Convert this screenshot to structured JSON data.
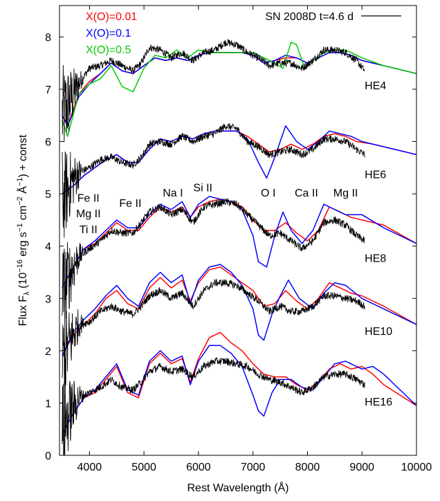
{
  "chart_data": {
    "type": "line",
    "title": "",
    "xlabel": "Rest Wavelength (Å)",
    "ylabel_parts": {
      "prefix": "Flux  F",
      "sub": "λ",
      "mid1": "  (10",
      "exp1": "−16",
      "mid2": " erg s",
      "exp2": "−1",
      "mid3": " cm",
      "exp3": "−2",
      "mid4": " Å",
      "exp4": "−1",
      "suffix": ") + const"
    },
    "xlim": [
      3450,
      10000
    ],
    "ylim": [
      0,
      8.6
    ],
    "x_ticks": [
      4000,
      5000,
      6000,
      7000,
      8000,
      9000,
      10000
    ],
    "y_ticks": [
      0,
      1,
      2,
      3,
      4,
      5,
      6,
      7,
      8
    ],
    "legend": {
      "placement": "top",
      "entries": [
        {
          "label": "X(O)=0.01",
          "color": "#ff0000"
        },
        {
          "label": "X(O)=0.1",
          "color": "#0000ff"
        },
        {
          "label": "X(O)=0.5",
          "color": "#00cc00"
        },
        {
          "label": "SN 2008D t=4.6 d",
          "color": "#000000"
        }
      ]
    },
    "model_labels": [
      {
        "text": "HE4",
        "x": 9050,
        "y": 7.0
      },
      {
        "text": "HE6",
        "x": 9050,
        "y": 5.3
      },
      {
        "text": "HE8",
        "x": 9050,
        "y": 3.7
      },
      {
        "text": "HE10",
        "x": 9050,
        "y": 2.3
      },
      {
        "text": "HE16",
        "x": 9050,
        "y": 0.95
      }
    ],
    "ion_labels": [
      {
        "text": "Fe II",
        "x": 3980,
        "y": 4.85
      },
      {
        "text": "Mg II",
        "x": 3980,
        "y": 4.55
      },
      {
        "text": "Ti II",
        "x": 3980,
        "y": 4.25
      },
      {
        "text": "Fe II",
        "x": 4750,
        "y": 4.75
      },
      {
        "text": "Na I",
        "x": 5530,
        "y": 4.95
      },
      {
        "text": "Si II",
        "x": 6080,
        "y": 5.05
      },
      {
        "text": "O I",
        "x": 7280,
        "y": 4.95
      },
      {
        "text": "Ca II",
        "x": 7980,
        "y": 4.95
      },
      {
        "text": "Mg II",
        "x": 8700,
        "y": 4.95
      }
    ],
    "series": [
      {
        "group": "HE4",
        "color": "#000000",
        "noisy": true,
        "x": [
          3500,
          3650,
          3800,
          4000,
          4200,
          4400,
          4600,
          4800,
          4950,
          5100,
          5300,
          5500,
          5700,
          5900,
          6100,
          6300,
          6500,
          6700,
          6900,
          7100,
          7300,
          7500,
          7700,
          7900,
          8100,
          8300,
          8500,
          8700,
          8900,
          9050
        ],
        "y": [
          6.5,
          6.8,
          7.1,
          7.4,
          7.45,
          7.55,
          7.45,
          7.35,
          7.5,
          7.8,
          7.75,
          7.6,
          7.7,
          7.55,
          7.7,
          7.75,
          7.9,
          7.85,
          7.7,
          7.6,
          7.45,
          7.5,
          7.5,
          7.4,
          7.55,
          7.75,
          7.75,
          7.7,
          7.55,
          7.35
        ]
      },
      {
        "group": "HE4",
        "color": "#ff0000",
        "x": [
          3500,
          3600,
          3700,
          3800,
          4000,
          4200,
          4400,
          4600,
          4800,
          5000,
          5200,
          5400,
          5600,
          5800,
          6000,
          6200,
          6500,
          6800,
          7000,
          7200,
          7400,
          7600,
          7800,
          8000,
          8200,
          8400,
          8600,
          8800,
          9000,
          9400,
          10000
        ],
        "y": [
          6.5,
          6.3,
          6.6,
          6.9,
          7.15,
          7.3,
          7.5,
          7.35,
          7.3,
          7.45,
          7.6,
          7.55,
          7.6,
          7.55,
          7.65,
          7.7,
          7.7,
          7.7,
          7.65,
          7.5,
          7.55,
          7.6,
          7.6,
          7.5,
          7.6,
          7.7,
          7.7,
          7.65,
          7.55,
          7.45,
          7.3
        ]
      },
      {
        "group": "HE4",
        "color": "#0000ff",
        "x": [
          3500,
          3600,
          3700,
          3800,
          4000,
          4200,
          4400,
          4600,
          4800,
          5000,
          5200,
          5400,
          5600,
          5800,
          6000,
          6200,
          6500,
          6800,
          7000,
          7200,
          7400,
          7600,
          7800,
          8000,
          8200,
          8400,
          8600,
          8800,
          9000,
          9400,
          10000
        ],
        "y": [
          6.5,
          6.3,
          6.55,
          6.85,
          7.1,
          7.3,
          7.5,
          7.35,
          7.3,
          7.45,
          7.6,
          7.55,
          7.6,
          7.55,
          7.65,
          7.7,
          7.7,
          7.7,
          7.65,
          7.5,
          7.55,
          7.65,
          7.6,
          7.5,
          7.6,
          7.7,
          7.7,
          7.65,
          7.55,
          7.45,
          7.3
        ]
      },
      {
        "group": "HE4",
        "color": "#00cc00",
        "x": [
          3500,
          3600,
          3700,
          3800,
          4000,
          4200,
          4400,
          4600,
          4800,
          5000,
          5200,
          5400,
          5600,
          5800,
          6000,
          6200,
          6500,
          6800,
          7000,
          7200,
          7400,
          7550,
          7700,
          7800,
          7950,
          8100,
          8300,
          8500,
          8700,
          9000,
          9400,
          10000
        ],
        "y": [
          6.4,
          6.1,
          6.5,
          6.9,
          7.1,
          7.2,
          7.45,
          7.05,
          6.95,
          7.4,
          7.65,
          7.6,
          7.75,
          7.6,
          7.75,
          7.7,
          7.7,
          7.7,
          7.7,
          7.6,
          7.5,
          7.4,
          7.9,
          7.85,
          7.4,
          7.55,
          7.7,
          7.75,
          7.75,
          7.6,
          7.45,
          7.3
        ]
      },
      {
        "group": "HE6",
        "color": "#000000",
        "noisy": true,
        "x": [
          3500,
          3650,
          3800,
          4000,
          4200,
          4400,
          4600,
          4800,
          4950,
          5100,
          5300,
          5500,
          5700,
          5900,
          6100,
          6300,
          6500,
          6700,
          6900,
          7100,
          7300,
          7500,
          7700,
          7900,
          8100,
          8300,
          8500,
          8700,
          8900,
          9050
        ],
        "y": [
          4.9,
          5.2,
          5.4,
          5.5,
          5.65,
          5.7,
          5.6,
          5.55,
          5.7,
          5.95,
          6.0,
          5.95,
          6.1,
          6.0,
          6.1,
          6.15,
          6.3,
          6.25,
          6.0,
          5.9,
          5.75,
          5.8,
          5.85,
          5.75,
          5.85,
          6.05,
          6.05,
          6.0,
          5.85,
          5.75
        ]
      },
      {
        "group": "HE6",
        "color": "#ff0000",
        "x": [
          3500,
          3700,
          3900,
          4100,
          4300,
          4500,
          4700,
          4900,
          5100,
          5300,
          5500,
          5700,
          5900,
          6100,
          6300,
          6500,
          6700,
          6900,
          7100,
          7300,
          7500,
          7700,
          7900,
          8100,
          8300,
          8500,
          8700,
          8900,
          9200,
          9600,
          10000
        ],
        "y": [
          5.0,
          5.15,
          5.35,
          5.5,
          5.65,
          5.75,
          5.6,
          5.6,
          5.85,
          6.05,
          6.0,
          6.1,
          6.05,
          6.15,
          6.2,
          6.2,
          6.2,
          6.1,
          5.95,
          5.8,
          5.85,
          5.95,
          5.85,
          5.95,
          6.1,
          6.15,
          6.1,
          6.0,
          5.95,
          5.85,
          5.75
        ]
      },
      {
        "group": "HE6",
        "color": "#0000ff",
        "x": [
          3500,
          3700,
          3900,
          4100,
          4300,
          4500,
          4700,
          4900,
          5100,
          5300,
          5500,
          5700,
          5900,
          6100,
          6300,
          6500,
          6700,
          6900,
          7100,
          7250,
          7400,
          7600,
          7800,
          8000,
          8200,
          8400,
          8600,
          8800,
          9000,
          9400,
          10000
        ],
        "y": [
          5.0,
          5.15,
          5.35,
          5.5,
          5.65,
          5.75,
          5.6,
          5.6,
          5.85,
          6.05,
          6.0,
          6.1,
          6.05,
          6.15,
          6.2,
          6.2,
          6.2,
          6.05,
          5.6,
          5.3,
          5.7,
          6.3,
          6.0,
          5.85,
          6.0,
          6.2,
          6.15,
          6.1,
          6.0,
          5.9,
          5.75
        ]
      },
      {
        "group": "HE8",
        "color": "#000000",
        "noisy": true,
        "x": [
          3500,
          3650,
          3800,
          4000,
          4200,
          4400,
          4600,
          4800,
          4950,
          5100,
          5300,
          5500,
          5700,
          5900,
          6100,
          6300,
          6500,
          6700,
          6900,
          7100,
          7300,
          7500,
          7700,
          7900,
          8100,
          8300,
          8500,
          8700,
          8900,
          9050
        ],
        "y": [
          3.1,
          3.5,
          3.8,
          3.95,
          4.1,
          4.3,
          4.25,
          4.25,
          4.45,
          4.65,
          4.75,
          4.6,
          4.7,
          4.45,
          4.75,
          4.8,
          4.85,
          4.8,
          4.6,
          4.4,
          4.2,
          4.25,
          4.1,
          3.95,
          4.1,
          4.45,
          4.5,
          4.4,
          4.2,
          4.1
        ]
      },
      {
        "group": "HE8",
        "color": "#ff0000",
        "x": [
          3500,
          3700,
          3900,
          4100,
          4300,
          4500,
          4700,
          4900,
          5100,
          5300,
          5500,
          5700,
          5850,
          6000,
          6200,
          6400,
          6600,
          6800,
          7000,
          7200,
          7400,
          7600,
          7800,
          8000,
          8200,
          8400,
          8600,
          8800,
          9000,
          9400,
          10000
        ],
        "y": [
          3.2,
          3.6,
          3.95,
          4.05,
          4.25,
          4.45,
          4.3,
          4.3,
          4.55,
          4.75,
          4.65,
          4.75,
          4.55,
          4.75,
          4.85,
          4.9,
          4.85,
          4.75,
          4.5,
          4.3,
          4.3,
          4.45,
          4.25,
          4.1,
          4.3,
          4.75,
          4.65,
          4.55,
          4.5,
          4.4,
          4.05
        ]
      },
      {
        "group": "HE8",
        "color": "#0000ff",
        "x": [
          3500,
          3700,
          3900,
          4100,
          4300,
          4500,
          4700,
          4900,
          5100,
          5300,
          5500,
          5700,
          5850,
          6000,
          6200,
          6400,
          6600,
          6800,
          7000,
          7100,
          7250,
          7400,
          7550,
          7700,
          7900,
          8100,
          8300,
          8500,
          8700,
          9000,
          9400,
          10000
        ],
        "y": [
          3.2,
          3.6,
          3.95,
          4.1,
          4.3,
          4.5,
          4.35,
          4.35,
          4.6,
          4.8,
          4.7,
          4.85,
          4.55,
          4.8,
          4.95,
          4.9,
          4.85,
          4.7,
          4.2,
          3.7,
          3.6,
          4.2,
          4.65,
          4.3,
          4.05,
          4.3,
          4.8,
          4.7,
          4.6,
          4.6,
          4.35,
          4.05
        ]
      },
      {
        "group": "HE10",
        "color": "#000000",
        "noisy": true,
        "x": [
          3500,
          3650,
          3800,
          4000,
          4200,
          4400,
          4600,
          4800,
          4950,
          5100,
          5300,
          5500,
          5700,
          5900,
          6100,
          6300,
          6500,
          6700,
          6900,
          7100,
          7300,
          7500,
          7700,
          7900,
          8100,
          8300,
          8500,
          8700,
          8900,
          9050
        ],
        "y": [
          1.8,
          2.2,
          2.5,
          2.55,
          2.75,
          2.85,
          2.75,
          2.7,
          2.85,
          3.05,
          3.15,
          3.0,
          3.1,
          2.85,
          3.15,
          3.3,
          3.3,
          3.25,
          3.1,
          2.95,
          2.75,
          2.85,
          2.75,
          2.75,
          2.85,
          3.05,
          3.05,
          3.0,
          2.95,
          2.85
        ]
      },
      {
        "group": "HE10",
        "color": "#ff0000",
        "x": [
          3500,
          3700,
          3900,
          4100,
          4300,
          4500,
          4700,
          4900,
          5100,
          5300,
          5500,
          5700,
          5850,
          6000,
          6200,
          6400,
          6600,
          6800,
          7000,
          7200,
          7400,
          7600,
          7800,
          8000,
          8200,
          8400,
          8600,
          8800,
          9000,
          9400,
          10000
        ],
        "y": [
          1.9,
          2.3,
          2.5,
          2.7,
          3.0,
          3.15,
          2.9,
          2.8,
          3.2,
          3.4,
          3.2,
          3.35,
          2.95,
          3.3,
          3.55,
          3.6,
          3.45,
          3.3,
          3.15,
          2.85,
          2.9,
          3.15,
          2.95,
          2.8,
          3.0,
          3.3,
          3.2,
          3.1,
          3.05,
          2.85,
          2.5
        ]
      },
      {
        "group": "HE10",
        "color": "#0000ff",
        "x": [
          3500,
          3700,
          3900,
          4100,
          4300,
          4500,
          4700,
          4900,
          5100,
          5300,
          5500,
          5700,
          5850,
          6000,
          6200,
          6400,
          6600,
          6800,
          7000,
          7100,
          7200,
          7350,
          7500,
          7650,
          7850,
          8100,
          8300,
          8500,
          8700,
          9000,
          9400,
          10000
        ],
        "y": [
          1.9,
          2.35,
          2.6,
          2.8,
          3.05,
          3.25,
          3.0,
          2.85,
          3.3,
          3.5,
          3.3,
          3.45,
          2.9,
          3.35,
          3.6,
          3.65,
          3.5,
          3.25,
          2.8,
          2.3,
          2.2,
          2.7,
          3.05,
          3.35,
          3.0,
          2.8,
          3.1,
          3.3,
          3.25,
          3.0,
          2.8,
          2.5
        ]
      },
      {
        "group": "HE16",
        "color": "#000000",
        "noisy": true,
        "x": [
          3500,
          3650,
          3800,
          4000,
          4200,
          4400,
          4600,
          4800,
          4950,
          5100,
          5300,
          5500,
          5700,
          5900,
          6100,
          6300,
          6500,
          6700,
          6900,
          7100,
          7300,
          7500,
          7700,
          7900,
          8100,
          8300,
          8500,
          8700,
          8900,
          9050
        ],
        "y": [
          0.5,
          0.85,
          1.1,
          1.2,
          1.3,
          1.45,
          1.3,
          1.25,
          1.4,
          1.6,
          1.7,
          1.6,
          1.65,
          1.5,
          1.7,
          1.8,
          1.8,
          1.75,
          1.7,
          1.55,
          1.45,
          1.4,
          1.3,
          1.2,
          1.3,
          1.5,
          1.55,
          1.55,
          1.45,
          1.35
        ]
      },
      {
        "group": "HE16",
        "color": "#ff0000",
        "x": [
          3500,
          3700,
          3900,
          4100,
          4300,
          4500,
          4700,
          4900,
          5100,
          5300,
          5500,
          5700,
          5850,
          6000,
          6200,
          6400,
          6600,
          6800,
          7000,
          7200,
          7400,
          7600,
          7800,
          8000,
          8200,
          8400,
          8600,
          8800,
          9000,
          9200,
          9400,
          9700,
          10000
        ],
        "y": [
          0.4,
          0.8,
          1.1,
          1.2,
          1.45,
          1.7,
          1.2,
          1.1,
          1.75,
          1.95,
          1.75,
          1.85,
          1.4,
          1.85,
          2.25,
          2.35,
          2.15,
          2.0,
          1.75,
          1.55,
          1.5,
          1.5,
          1.35,
          1.25,
          1.4,
          1.65,
          1.75,
          1.65,
          1.7,
          1.55,
          1.35,
          1.15,
          0.95
        ]
      },
      {
        "group": "HE16",
        "color": "#0000ff",
        "x": [
          3500,
          3700,
          3900,
          4100,
          4300,
          4500,
          4700,
          4900,
          5100,
          5300,
          5500,
          5700,
          5850,
          6000,
          6200,
          6400,
          6600,
          6800,
          7000,
          7100,
          7200,
          7350,
          7500,
          7700,
          7900,
          8100,
          8300,
          8500,
          8700,
          9000,
          9200,
          9400,
          9700,
          10000
        ],
        "y": [
          0.4,
          0.8,
          1.1,
          1.25,
          1.5,
          1.75,
          1.25,
          1.15,
          1.8,
          2.0,
          1.8,
          1.9,
          1.35,
          1.8,
          2.1,
          2.1,
          1.95,
          1.7,
          1.15,
          0.85,
          0.75,
          1.2,
          1.45,
          1.45,
          1.3,
          1.25,
          1.5,
          1.75,
          1.8,
          1.65,
          1.7,
          1.55,
          1.25,
          0.95
        ]
      }
    ]
  }
}
